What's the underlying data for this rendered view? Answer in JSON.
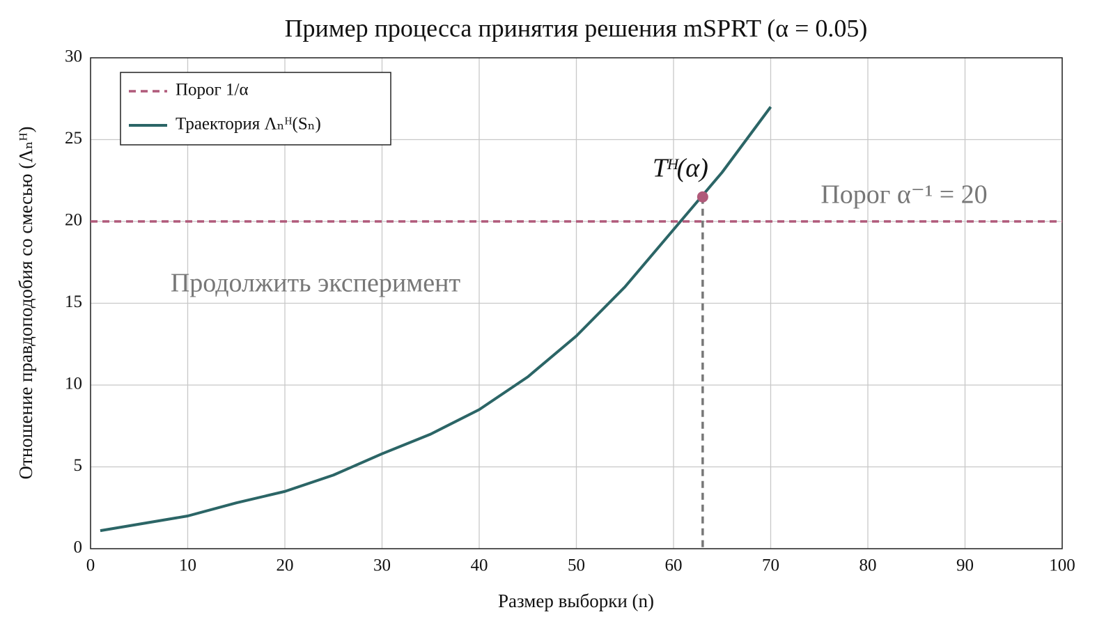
{
  "chart_data": {
    "type": "line",
    "title": "Пример процесса принятия решения mSPRT (α = 0.05)",
    "x_label": "Размер выборки (n)",
    "y_label": "Отношение правдоподобия со смесью (Λₙᴴ)",
    "x": [
      1,
      10,
      15,
      20,
      25,
      30,
      35,
      40,
      45,
      50,
      55,
      60,
      65,
      70
    ],
    "series": [
      {
        "name": "Траектория Λₙᴴ(Sₙ)",
        "color": "#2b6566",
        "values": [
          1.1,
          2.0,
          2.8,
          3.5,
          4.5,
          5.8,
          7.0,
          8.5,
          10.5,
          13.0,
          16.0,
          19.5,
          23.0,
          27.0
        ]
      }
    ],
    "threshold": {
      "name": "Порог 1/α",
      "value": 20,
      "color": "#b05a7a"
    },
    "marker": {
      "label": "Tᴴ(α)",
      "x": 63,
      "y": 21.5,
      "color": "#b05a7a"
    },
    "annotations": [
      "Порог α⁻¹ = 20",
      "Продолжить эксперимент"
    ],
    "xlim": [
      0,
      100
    ],
    "xticks": [
      0,
      10,
      20,
      30,
      40,
      50,
      60,
      70,
      80,
      90,
      100
    ],
    "ylim": [
      0,
      30
    ],
    "yticks": [
      0,
      5,
      10,
      15,
      20,
      25,
      30
    ],
    "grid": true,
    "legend": "upper left"
  }
}
